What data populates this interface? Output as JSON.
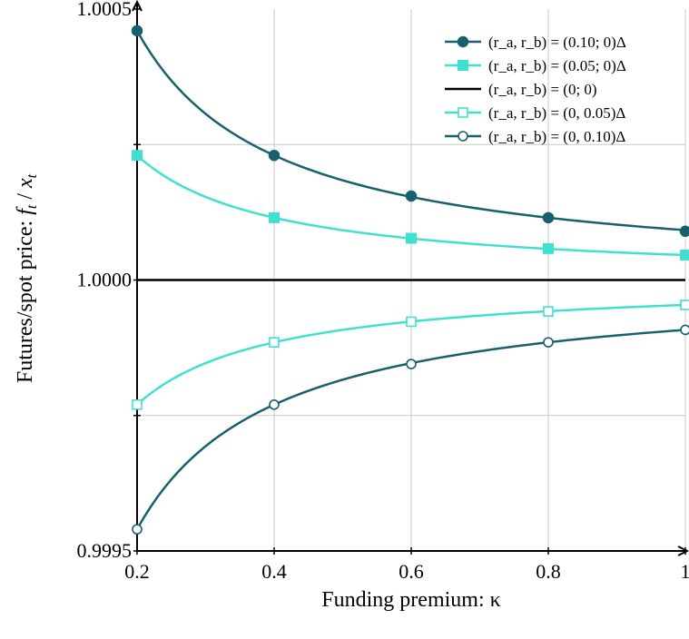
{
  "chart_data": {
    "type": "line",
    "xlabel": "Funding premium: κ",
    "ylabel": "Futures/spot price: f_t / x_t",
    "xlim": [
      0.2,
      1
    ],
    "ylim": [
      0.9995,
      1.0005
    ],
    "x_ticks": [
      "0.2",
      "0.4",
      "0.6",
      "0.8",
      "1"
    ],
    "y_ticks": [
      "0.9995",
      "1.0000",
      "1.0005"
    ],
    "grid": true,
    "legend_position": "top-right",
    "series": [
      {
        "name": "(r_a, r_b) = (0.10; 0)Δ",
        "color": "#17616e",
        "marker": "filled-circle",
        "x": [
          0.2,
          0.4,
          0.6,
          0.8,
          1.0
        ],
        "y": [
          1.00046,
          1.00023,
          1.000155,
          1.000115,
          1.00009
        ]
      },
      {
        "name": "(r_a, r_b) = (0.05; 0)Δ",
        "color": "#40e0d0",
        "marker": "filled-square",
        "x": [
          0.2,
          0.4,
          0.6,
          0.8,
          1.0
        ],
        "y": [
          1.00023,
          1.000115,
          1.000077,
          1.000058,
          1.000046
        ]
      },
      {
        "name": "(r_a, r_b) = (0; 0)",
        "color": "#000000",
        "marker": "none",
        "x": [
          0.2,
          1.0
        ],
        "y": [
          1.0,
          1.0
        ]
      },
      {
        "name": "(r_a, r_b) = (0, 0.05)Δ",
        "color": "#40e0d0",
        "marker": "open-square",
        "x": [
          0.2,
          0.4,
          0.6,
          0.8,
          1.0
        ],
        "y": [
          0.99977,
          0.999885,
          0.999923,
          0.999942,
          0.999954
        ]
      },
      {
        "name": "(r_a, r_b) = (0, 0.10)Δ",
        "color": "#17616e",
        "marker": "open-circle",
        "x": [
          0.2,
          0.4,
          0.6,
          0.8,
          1.0
        ],
        "y": [
          0.99954,
          0.99977,
          0.999845,
          0.999885,
          0.999908
        ]
      }
    ]
  }
}
